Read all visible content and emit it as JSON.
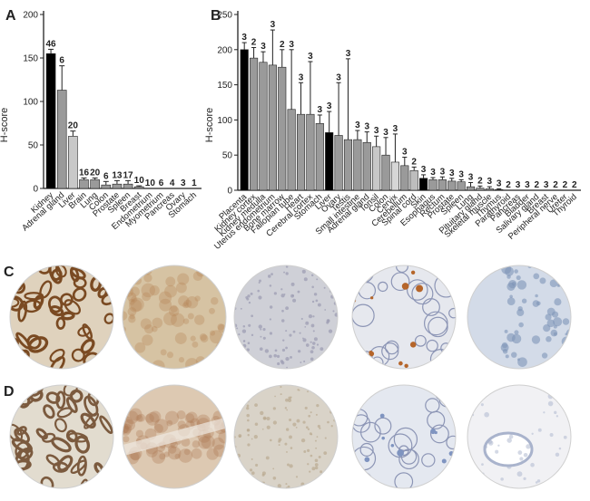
{
  "panels": {
    "a": "A",
    "b": "B",
    "c": "C",
    "d": "D"
  },
  "chart_data": [
    {
      "type": "bar",
      "ylabel": "H-score",
      "ylim": [
        0,
        200
      ],
      "yticks": [
        0,
        50,
        100,
        150,
        200
      ],
      "categories": [
        "Kidney",
        "Adrenal gland",
        "Liver",
        "Brain",
        "Lung",
        "Colon",
        "Prostate",
        "Spleen",
        "Breast",
        "Endometrium",
        "Myometrium",
        "Pancreas",
        "Ovary",
        "Stomach"
      ],
      "values": [
        155,
        113,
        60,
        10,
        10,
        4,
        5,
        5,
        2,
        0,
        0,
        0,
        0,
        0
      ],
      "errors": [
        5,
        28,
        6,
        2,
        2,
        4,
        4,
        4,
        1,
        0,
        0,
        0,
        0,
        0
      ],
      "n_labels": [
        "46",
        "6",
        "20",
        "16",
        "20",
        "6",
        "13",
        "17",
        "10",
        "10",
        "6",
        "4",
        "3",
        "1"
      ],
      "colors": [
        "#000000",
        "#9a9a9a",
        "#c8c8c8",
        "#9a9a9a",
        "#9a9a9a",
        "#9a9a9a",
        "#9a9a9a",
        "#9a9a9a",
        "#9a9a9a",
        "#9a9a9a",
        "#9a9a9a",
        "#9a9a9a",
        "#9a9a9a",
        "#9a9a9a"
      ]
    },
    {
      "type": "bar",
      "ylabel": "H-score",
      "ylim": [
        0,
        250
      ],
      "yticks": [
        0,
        50,
        100,
        150,
        200,
        250
      ],
      "categories": [
        "Placenta",
        "Kidney cortex",
        "Kidney medulla",
        "Uterus endometrium",
        "Bone marrow",
        "Fallopian tube",
        "Heart",
        "Cerebral cortex",
        "Stomach",
        "Liver",
        "Ovary",
        "Testis",
        "Small intestine",
        "Adrenal gland",
        "Tonsil",
        "Colon",
        "Cervix",
        "Cerebellum",
        "Spinal cord",
        "Skin",
        "Esophagus",
        "Rectum",
        "Prostate",
        "Spleen",
        "Lung",
        "Pituitary gland",
        "Skeletal muscle",
        "Thymus",
        "Parathyroid",
        "Pancreas",
        "Bladder",
        "Salivary gland",
        "Breast",
        "Peripheral nerve",
        "Ureter",
        "Thyroid"
      ],
      "values": [
        200,
        188,
        182,
        178,
        175,
        115,
        108,
        108,
        95,
        82,
        78,
        72,
        72,
        68,
        62,
        50,
        40,
        35,
        28,
        17,
        15,
        15,
        13,
        12,
        5,
        3,
        2,
        1,
        0,
        0,
        0,
        0,
        0,
        0,
        0,
        0
      ],
      "errors": [
        10,
        15,
        15,
        50,
        25,
        85,
        45,
        75,
        12,
        30,
        75,
        115,
        13,
        15,
        15,
        25,
        40,
        12,
        5,
        5,
        3,
        4,
        4,
        3,
        6,
        3,
        3,
        1,
        0,
        0,
        0,
        0,
        0,
        0,
        0,
        0
      ],
      "n_labels": [
        "3",
        "2",
        "3",
        "3",
        "2",
        "3",
        "3",
        "3",
        "3",
        "3",
        "3",
        "3",
        "3",
        "3",
        "3",
        "3",
        "3",
        "3",
        "2",
        "3",
        "3",
        "3",
        "3",
        "3",
        "3",
        "2",
        "3",
        "3",
        "2",
        "3",
        "3",
        "2",
        "3",
        "2",
        "2",
        "2"
      ],
      "colors": [
        "#000000",
        "#9a9a9a",
        "#9a9a9a",
        "#9a9a9a",
        "#9a9a9a",
        "#9a9a9a",
        "#9a9a9a",
        "#9a9a9a",
        "#9a9a9a",
        "#000000",
        "#9a9a9a",
        "#9a9a9a",
        "#9a9a9a",
        "#9a9a9a",
        "#c8c8c8",
        "#9a9a9a",
        "#d6d6d6",
        "#9a9a9a",
        "#bdbdbd",
        "#000000",
        "#9a9a9a",
        "#9a9a9a",
        "#9a9a9a",
        "#9a9a9a",
        "#9a9a9a",
        "#9a9a9a",
        "#9a9a9a",
        "#9a9a9a",
        "#9a9a9a",
        "#9a9a9a",
        "#9a9a9a",
        "#9a9a9a",
        "#9a9a9a",
        "#9a9a9a",
        "#9a9a9a",
        "#9a9a9a"
      ]
    }
  ],
  "tissue_rows": [
    {
      "label_key": "c",
      "cores": [
        {
          "bg": "#dfd2bd",
          "stain": "#7a4a22",
          "pattern": "tubules"
        },
        {
          "bg": "#d6c3a3",
          "stain": "#b8865a",
          "pattern": "diffuse"
        },
        {
          "bg": "#cfd0d7",
          "stain": "#9a9ab0",
          "pattern": "dots"
        },
        {
          "bg": "#e6e8ee",
          "stain": "#b5652a",
          "pattern": "alveoli"
        },
        {
          "bg": "#d3dbe8",
          "stain": "#7f94b8",
          "pattern": "sparse"
        }
      ]
    },
    {
      "label_key": "d",
      "cores": [
        {
          "bg": "#e2dccf",
          "stain": "#7b5a3e",
          "pattern": "tubules"
        },
        {
          "bg": "#ddc9b2",
          "stain": "#b07b55",
          "pattern": "band"
        },
        {
          "bg": "#d9d3c8",
          "stain": "#b9a990",
          "pattern": "dots"
        },
        {
          "bg": "#e4e8f0",
          "stain": "#7f94c0",
          "pattern": "alveoli"
        },
        {
          "bg": "#f1f1f4",
          "stain": "#a9b3cc",
          "pattern": "duct"
        }
      ]
    }
  ]
}
